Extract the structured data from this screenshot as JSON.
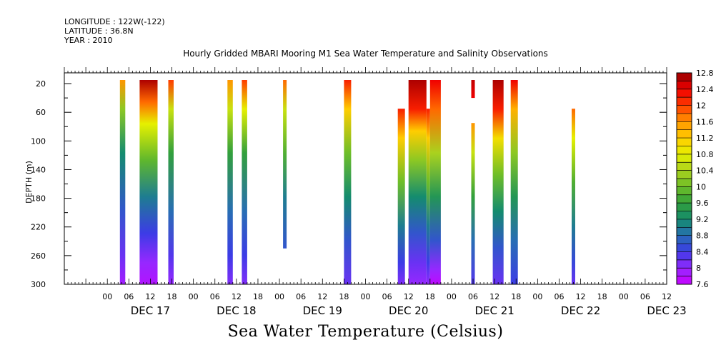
{
  "header": {
    "longitude": "LONGITUDE : 122W(-122)",
    "latitude": "LATITUDE : 36.8N",
    "year": "YEAR : 2010"
  },
  "chart_data": {
    "type": "heatmap",
    "title": "Hourly Gridded MBARI Mooring M1 Sea Water Temperature and Salinity Observations",
    "bottom_title": "Sea Water Temperature (Celsius)",
    "ylabel": "DEPTH (m)",
    "xlabel": "",
    "ylim": [
      300,
      0
    ],
    "y_ticks": [
      20,
      60,
      100,
      140,
      180,
      220,
      260,
      300
    ],
    "x_range_hours": [
      0,
      168
    ],
    "x_unit": "hours after DEC 16 2010 12:00",
    "hour_labels": [
      "00",
      "06",
      "12",
      "18"
    ],
    "day_labels": [
      "DEC 17",
      "DEC 18",
      "DEC 19",
      "DEC 20",
      "DEC 21",
      "DEC 22",
      "DEC 23"
    ],
    "colorbar": {
      "min": 7.6,
      "max": 12.8,
      "step": 0.2,
      "labels": [
        "12.8",
        "12.4",
        "12",
        "11.6",
        "11.2",
        "10.8",
        "10.4",
        "10",
        "9.6",
        "9.2",
        "8.8",
        "8.4",
        "8",
        "7.6"
      ]
    },
    "columns": [
      {
        "t": 15.5,
        "w": 1.5,
        "top": 20,
        "bottom": 300,
        "temps": [
          [
            20,
            11.6
          ],
          [
            60,
            10.2
          ],
          [
            120,
            9.2
          ],
          [
            200,
            8.6
          ],
          [
            260,
            8.2
          ],
          [
            300,
            7.9
          ]
        ]
      },
      {
        "t": 21.0,
        "w": 5.0,
        "top": 20,
        "bottom": 300,
        "temps": [
          [
            20,
            12.7
          ],
          [
            50,
            11.8
          ],
          [
            80,
            10.8
          ],
          [
            130,
            9.9
          ],
          [
            180,
            9.0
          ],
          [
            230,
            8.4
          ],
          [
            270,
            8.0
          ],
          [
            300,
            7.8
          ]
        ]
      },
      {
        "t": 29.0,
        "w": 1.5,
        "top": 20,
        "bottom": 300,
        "temps": [
          [
            20,
            12.0
          ],
          [
            60,
            10.6
          ],
          [
            120,
            9.6
          ],
          [
            200,
            8.8
          ],
          [
            260,
            8.3
          ],
          [
            300,
            8.0
          ]
        ]
      },
      {
        "t": 45.5,
        "w": 1.5,
        "top": 20,
        "bottom": 300,
        "temps": [
          [
            20,
            11.6
          ],
          [
            60,
            10.6
          ],
          [
            120,
            9.6
          ],
          [
            200,
            8.8
          ],
          [
            260,
            8.4
          ],
          [
            300,
            8.1
          ]
        ]
      },
      {
        "t": 49.5,
        "w": 1.5,
        "top": 20,
        "bottom": 300,
        "temps": [
          [
            20,
            12.0
          ],
          [
            60,
            10.8
          ],
          [
            120,
            9.6
          ],
          [
            200,
            8.8
          ],
          [
            260,
            8.4
          ],
          [
            300,
            8.1
          ]
        ]
      },
      {
        "t": 61.0,
        "w": 1.0,
        "top": 20,
        "bottom": 250,
        "temps": [
          [
            20,
            11.8
          ],
          [
            60,
            10.6
          ],
          [
            120,
            9.8
          ],
          [
            180,
            9.0
          ],
          [
            250,
            8.6
          ]
        ]
      },
      {
        "t": 78.0,
        "w": 2.0,
        "top": 20,
        "bottom": 300,
        "temps": [
          [
            20,
            12.2
          ],
          [
            60,
            11.2
          ],
          [
            120,
            10.0
          ],
          [
            180,
            9.2
          ],
          [
            240,
            8.6
          ],
          [
            300,
            8.2
          ]
        ]
      },
      {
        "t": 93.0,
        "w": 2.0,
        "top": 60,
        "bottom": 300,
        "temps": [
          [
            60,
            12.2
          ],
          [
            100,
            11.2
          ],
          [
            160,
            10.0
          ],
          [
            220,
            9.0
          ],
          [
            270,
            8.4
          ],
          [
            300,
            8.1
          ]
        ]
      },
      {
        "t": 96.0,
        "w": 5.0,
        "top": 20,
        "bottom": 300,
        "temps": [
          [
            20,
            12.7
          ],
          [
            60,
            12.2
          ],
          [
            90,
            11.2
          ],
          [
            130,
            10.2
          ],
          [
            180,
            9.2
          ],
          [
            230,
            8.6
          ],
          [
            270,
            8.2
          ],
          [
            300,
            8.0
          ]
        ]
      },
      {
        "t": 101.0,
        "w": 1.0,
        "top": 60,
        "bottom": 300,
        "temps": [
          [
            60,
            12.2
          ],
          [
            100,
            11.2
          ],
          [
            160,
            10.0
          ],
          [
            220,
            9.0
          ],
          [
            270,
            8.4
          ],
          [
            300,
            8.0
          ]
        ]
      },
      {
        "t": 102.0,
        "w": 3.0,
        "top": 20,
        "bottom": 300,
        "temps": [
          [
            20,
            12.4
          ],
          [
            60,
            11.8
          ],
          [
            120,
            10.4
          ],
          [
            180,
            9.4
          ],
          [
            240,
            8.6
          ],
          [
            280,
            8.0
          ],
          [
            300,
            7.7
          ]
        ]
      },
      {
        "t": 113.5,
        "w": 1.0,
        "top": 20,
        "bottom": 40,
        "temps": [
          [
            20,
            12.6
          ],
          [
            40,
            12.4
          ]
        ]
      },
      {
        "t": 113.5,
        "w": 1.0,
        "top": 80,
        "bottom": 300,
        "temps": [
          [
            80,
            11.6
          ],
          [
            120,
            10.6
          ],
          [
            180,
            9.6
          ],
          [
            240,
            8.8
          ],
          [
            300,
            8.3
          ]
        ]
      },
      {
        "t": 119.5,
        "w": 3.0,
        "top": 20,
        "bottom": 300,
        "temps": [
          [
            20,
            12.7
          ],
          [
            60,
            12.2
          ],
          [
            100,
            11.0
          ],
          [
            150,
            10.0
          ],
          [
            200,
            9.2
          ],
          [
            250,
            8.6
          ],
          [
            300,
            8.2
          ]
        ]
      },
      {
        "t": 124.5,
        "w": 2.0,
        "top": 20,
        "bottom": 300,
        "temps": [
          [
            20,
            12.4
          ],
          [
            60,
            11.4
          ],
          [
            120,
            10.2
          ],
          [
            180,
            9.4
          ],
          [
            240,
            8.8
          ],
          [
            300,
            8.4
          ]
        ]
      },
      {
        "t": 141.5,
        "w": 1.0,
        "top": 60,
        "bottom": 300,
        "temps": [
          [
            60,
            11.8
          ],
          [
            100,
            10.8
          ],
          [
            160,
            9.8
          ],
          [
            220,
            9.0
          ],
          [
            270,
            8.5
          ],
          [
            300,
            8.2
          ]
        ]
      }
    ]
  }
}
